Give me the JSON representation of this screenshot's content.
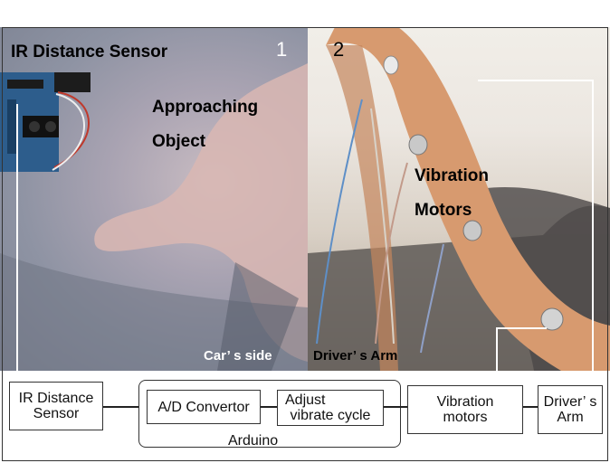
{
  "photo_labels": {
    "ir_sensor": "IR Distance Sensor",
    "approaching_line1": "Approaching",
    "approaching_line2": "Object",
    "panel1_number": "1",
    "panel2_number": "2",
    "vibration_line1": "Vibration",
    "vibration_line2": "Motors",
    "cars_side": "Car’ s side",
    "drivers_arm": "Driver’ s Arm"
  },
  "diagram": {
    "ir_sensor_box": "IR Distance Sensor",
    "ad_convertor": "A/D Convertor",
    "adjust_line1": "Adjust",
    "adjust_line2": "vibrate cycle",
    "arduino_label": "Arduino",
    "vibration_line1": "Vibration",
    "vibration_line2": "motors",
    "drivers_arm_line1": "Driver’ s",
    "drivers_arm_line2": "Arm"
  }
}
